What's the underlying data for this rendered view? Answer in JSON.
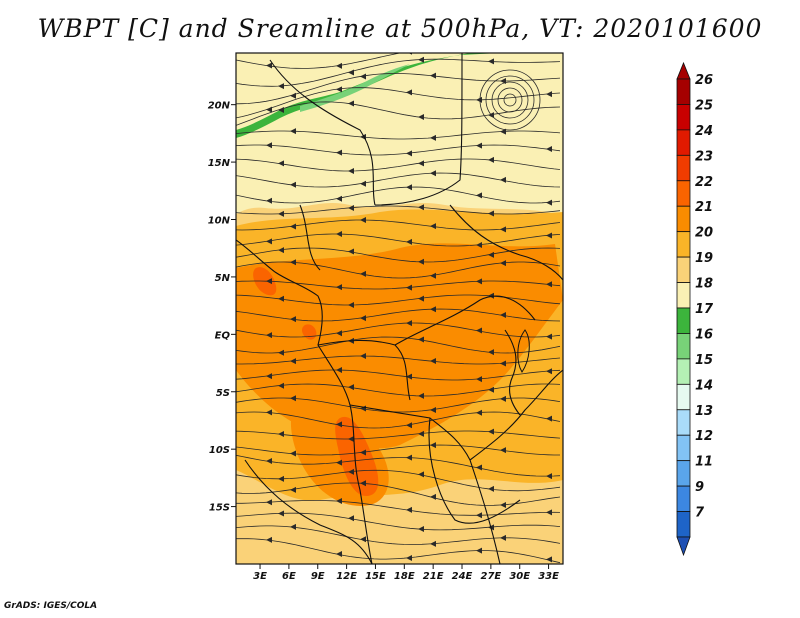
{
  "title": "WBPT [C] and Sreamline at 500hPa, VT: 2020101600",
  "credit": "GrADS: IGES/COLA",
  "axes": {
    "lat_ticks": [
      {
        "value": 20,
        "label": "20N"
      },
      {
        "value": 15,
        "label": "15N"
      },
      {
        "value": 10,
        "label": "10N"
      },
      {
        "value": 5,
        "label": "5N"
      },
      {
        "value": 0,
        "label": "EQ"
      },
      {
        "value": -5,
        "label": "5S"
      },
      {
        "value": -10,
        "label": "10S"
      },
      {
        "value": -15,
        "label": "15S"
      }
    ],
    "lon_ticks": [
      {
        "value": 3,
        "label": "3E"
      },
      {
        "value": 6,
        "label": "6E"
      },
      {
        "value": 9,
        "label": "9E"
      },
      {
        "value": 12,
        "label": "12E"
      },
      {
        "value": 15,
        "label": "15E"
      },
      {
        "value": 18,
        "label": "18E"
      },
      {
        "value": 21,
        "label": "21E"
      },
      {
        "value": 24,
        "label": "24E"
      },
      {
        "value": 27,
        "label": "27E"
      },
      {
        "value": 30,
        "label": "30E"
      },
      {
        "value": 33,
        "label": "33E"
      }
    ],
    "lon_range": [
      0.5,
      34.5
    ],
    "lat_range": [
      -20,
      24.5
    ]
  },
  "colorbar": {
    "levels": [
      {
        "label": "26",
        "color": "#a50000"
      },
      {
        "label": "25",
        "color": "#c80000"
      },
      {
        "label": "24",
        "color": "#e11a00"
      },
      {
        "label": "23",
        "color": "#f03c00"
      },
      {
        "label": "22",
        "color": "#fa6400"
      },
      {
        "label": "21",
        "color": "#fa8c00"
      },
      {
        "label": "20",
        "color": "#fab428"
      },
      {
        "label": "19",
        "color": "#fad278"
      },
      {
        "label": "18",
        "color": "#faf0b4"
      },
      {
        "label": "17",
        "color": "#3cb43c"
      },
      {
        "label": "16",
        "color": "#78d278"
      },
      {
        "label": "15",
        "color": "#b4f0b4"
      },
      {
        "label": "14",
        "color": "#e6faf0"
      },
      {
        "label": "13",
        "color": "#aadcfa"
      },
      {
        "label": "12",
        "color": "#82c3f5"
      },
      {
        "label": "11",
        "color": "#5aa5eb"
      },
      {
        "label": "9",
        "color": "#3c87e1"
      },
      {
        "label": "7",
        "color": "#1e64c8"
      }
    ],
    "bottom_color": "#1e50b4"
  }
}
